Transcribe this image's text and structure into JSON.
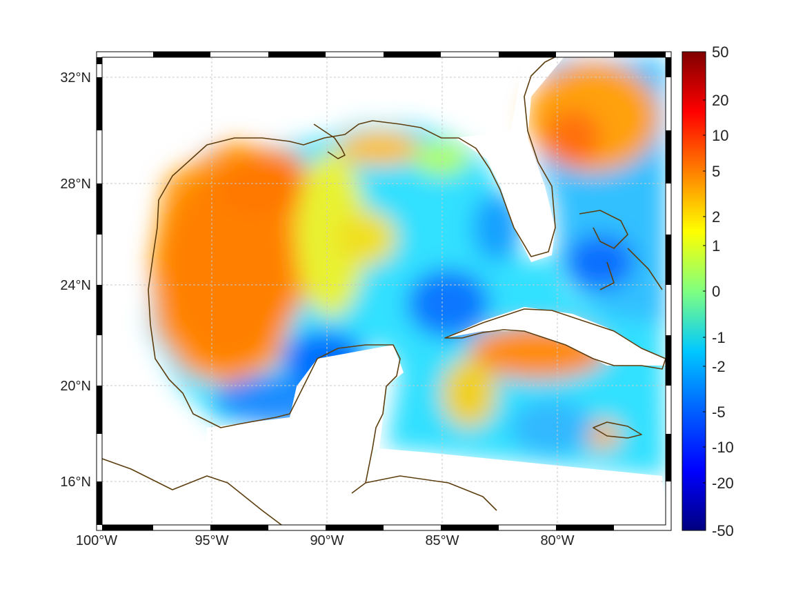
{
  "map": {
    "lat_labels": [
      "32°N",
      "28°N",
      "24°N",
      "20°N",
      "16°N"
    ],
    "lon_labels": [
      "100°W",
      "95°W",
      "90°W",
      "85°W",
      "80°W"
    ],
    "grid": true,
    "coastline_color": "#5c3d0e",
    "land_color": "#ffffff",
    "frame_style": "black-white dashed border"
  },
  "colorbar": {
    "orientation": "vertical",
    "placement": "right",
    "tick_labels": [
      "50",
      "20",
      "10",
      "5",
      "2",
      "1",
      "0",
      "-1",
      "-2",
      "-5",
      "-10",
      "-20",
      "-50"
    ],
    "colormap": "jet",
    "colors": [
      "#800000",
      "#ff0000",
      "#ff8000",
      "#ffff00",
      "#80ff80",
      "#00ffff",
      "#0080ff",
      "#0000ff",
      "#000080"
    ]
  }
}
